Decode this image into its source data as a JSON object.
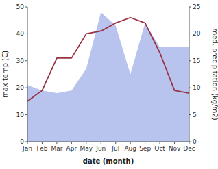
{
  "chart_data": {
    "type": "line",
    "categories": [
      "Jan",
      "Feb",
      "Mar",
      "Apr",
      "May",
      "Jun",
      "Jul",
      "Aug",
      "Sep",
      "Oct",
      "Nov",
      "Dec"
    ],
    "series": [
      {
        "type": "area",
        "color": "#b8c4ee",
        "values": [
          21,
          19,
          18,
          19,
          27,
          48,
          43,
          25,
          44,
          35,
          35,
          35
        ]
      },
      {
        "type": "line",
        "color": "#993344",
        "values": [
          15,
          19,
          31,
          31,
          40,
          41,
          44,
          46,
          44,
          33,
          19,
          18
        ]
      }
    ],
    "xlabel": "date (month)",
    "ylabel": "max temp (C)",
    "y2label": "med. precipitation (kg/m2)",
    "ylim": [
      0,
      50
    ],
    "yticks": [
      0,
      10,
      20,
      30,
      40,
      50
    ],
    "y2lim": [
      0,
      25
    ],
    "y2ticks": [
      0,
      5,
      10,
      15,
      20,
      25
    ]
  }
}
